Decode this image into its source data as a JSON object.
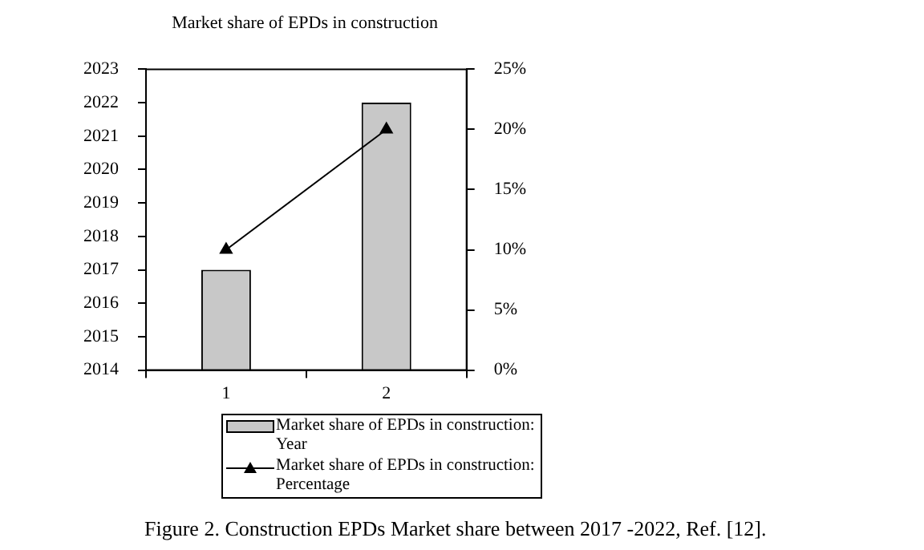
{
  "chart_data": {
    "type": "bar",
    "title": "Market share of EPDs in construction",
    "categories": [
      "1",
      "2"
    ],
    "series": [
      {
        "name": "Market share of EPDs in construction: Year",
        "color": "#c8c8c8",
        "values": [
          2017,
          2022
        ]
      },
      {
        "name": "Market share of EPDs in construction: Percentage",
        "type": "line",
        "axis": "y2",
        "color": "#000000",
        "values": [
          10,
          20
        ]
      }
    ],
    "ylim": [
      2014,
      2023
    ],
    "yticks": [
      2014,
      2015,
      2016,
      2017,
      2018,
      2019,
      2020,
      2021,
      2022,
      2023
    ],
    "y2lim": [
      0,
      25
    ],
    "y2ticks": [
      {
        "value": 0,
        "label": "0%"
      },
      {
        "value": 5,
        "label": "5%"
      },
      {
        "value": 10,
        "label": "10%"
      },
      {
        "value": 15,
        "label": "15%"
      },
      {
        "value": 20,
        "label": "20%"
      },
      {
        "value": 25,
        "label": "25%"
      }
    ],
    "grid": false,
    "legend": "bottom",
    "marker": "triangle",
    "line_style": "solid",
    "annotations": [
      "Figure 2. Construction EPDs Market share between 2017 -2022, Ref. [12]."
    ]
  }
}
